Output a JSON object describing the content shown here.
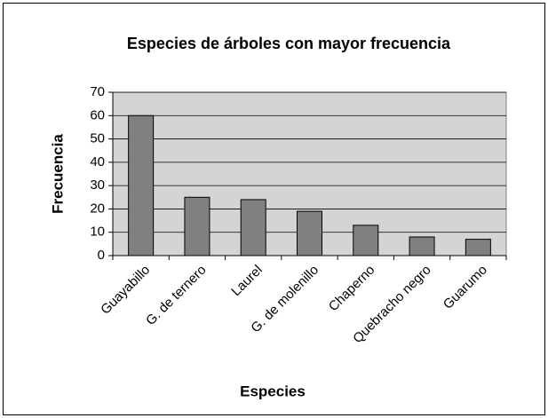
{
  "chart_data": {
    "type": "bar",
    "title": "Especies de árboles con mayor frecuencia",
    "x_label": "Especies",
    "y_label": "Frecuencia",
    "categories": [
      "Guayabillo",
      "G. de ternero",
      "Laurel",
      "G. de molenillo",
      "Chaperno",
      "Quebracho negro",
      "Guarumo"
    ],
    "values": [
      60,
      25,
      24,
      19,
      13,
      8,
      7
    ],
    "color": "#808080",
    "ylim": [
      0,
      70
    ],
    "yticks": [
      0,
      10,
      20,
      30,
      40,
      50,
      60,
      70
    ],
    "grid": true
  }
}
